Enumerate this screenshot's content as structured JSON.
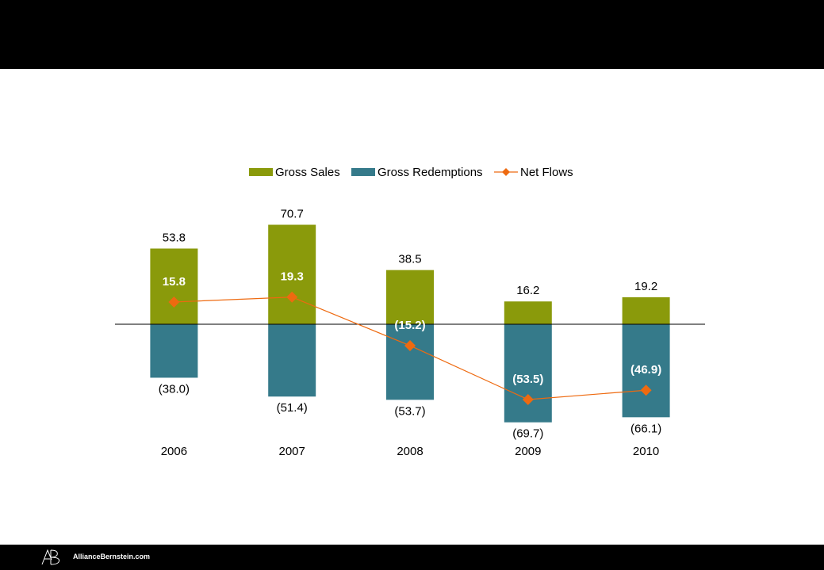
{
  "colors": {
    "gross_sales": "#8a9a0b",
    "gross_redemptions": "#357a8a",
    "net_flows": "#ee6a10",
    "header": "#000000",
    "footer": "#000000"
  },
  "footer": {
    "logo_icon": "alliancebernstein-ab-logo-icon",
    "website": "AllianceBernstein.com"
  },
  "chart_data": {
    "type": "bar",
    "categories": [
      "2006",
      "2007",
      "2008",
      "2009",
      "2010"
    ],
    "series": [
      {
        "name": "Gross Sales",
        "type": "bar",
        "values": [
          53.8,
          70.7,
          38.5,
          16.2,
          19.2
        ],
        "labels": [
          "53.8",
          "70.7",
          "38.5",
          "16.2",
          "19.2"
        ]
      },
      {
        "name": "Gross Redemptions",
        "type": "bar",
        "values": [
          -38.0,
          -51.4,
          -53.7,
          -69.7,
          -66.1
        ],
        "labels": [
          "(38.0)",
          "(51.4)",
          "(53.7)",
          "(69.7)",
          "(66.1)"
        ]
      },
      {
        "name": "Net Flows",
        "type": "line",
        "marker": "diamond",
        "values": [
          15.8,
          19.3,
          -15.2,
          -53.5,
          -46.9
        ],
        "labels": [
          "15.8",
          "19.3",
          "(15.2)",
          "(53.5)",
          "(46.9)"
        ]
      }
    ],
    "legend_position": "top-center",
    "grid": false,
    "axis_visible": false,
    "zero_line": true
  }
}
